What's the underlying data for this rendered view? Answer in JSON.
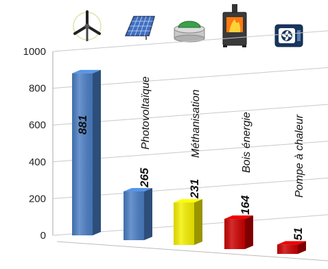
{
  "chart_data": {
    "type": "bar",
    "three_d": true,
    "categories": [
      "",
      "Photovoltaïque",
      "Méthanisation",
      "Bois énergie",
      "Pompe à chaleur"
    ],
    "values": [
      881,
      265,
      231,
      164,
      51
    ],
    "icons": [
      "wind-turbine-icon",
      "solar-panel-icon",
      "biogas-digester-icon",
      "wood-stove-icon",
      "heat-pump-icon"
    ],
    "colors": [
      "#4a7ec4",
      "#4a7ec4",
      "#f5f000",
      "#cc0000",
      "#cc0000"
    ],
    "y_ticks": [
      0,
      200,
      400,
      600,
      800,
      1000
    ],
    "ylim": [
      0,
      1000
    ],
    "grid": true,
    "legend": "none"
  }
}
